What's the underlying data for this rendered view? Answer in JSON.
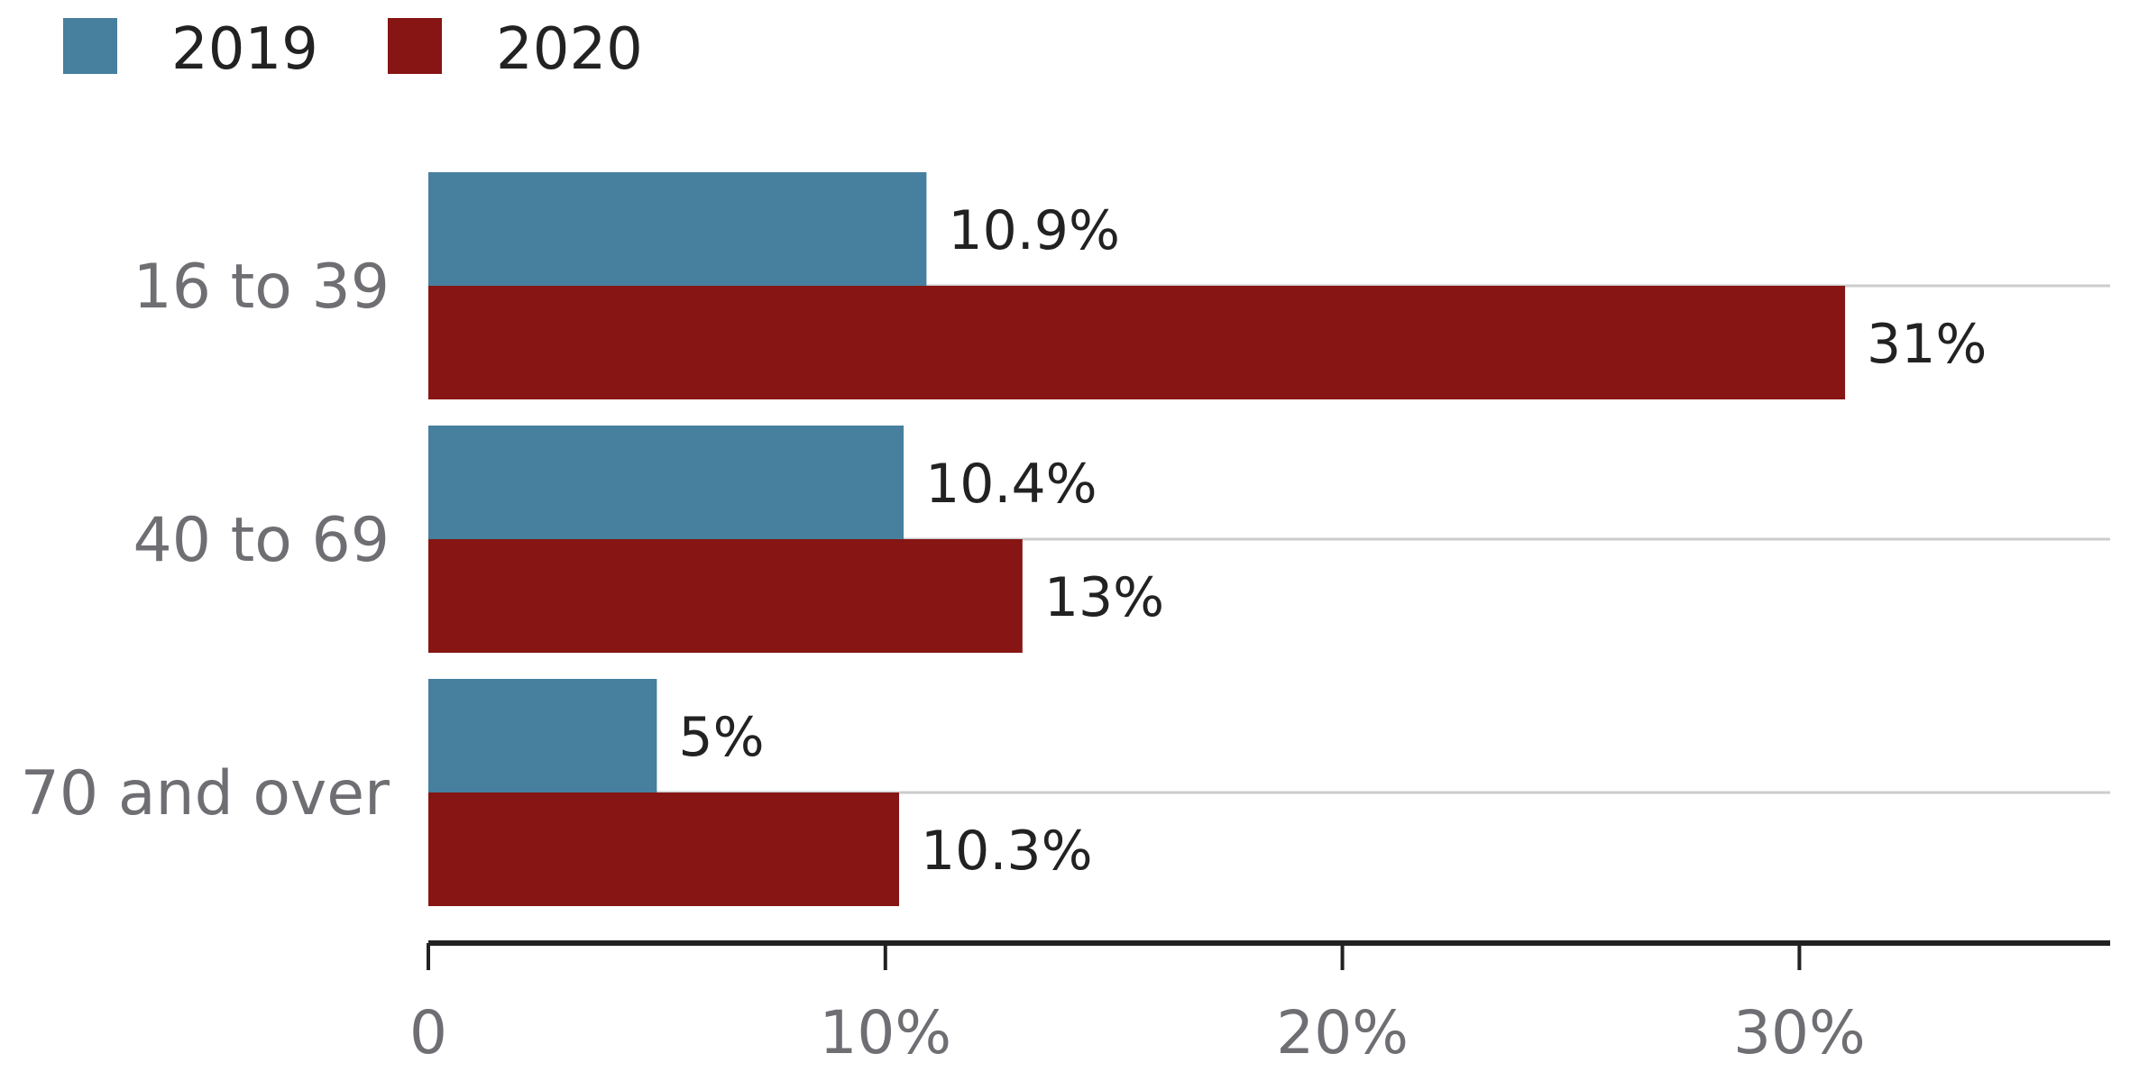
{
  "chart_data": {
    "type": "bar",
    "orientation": "horizontal",
    "categories": [
      "16 to 39",
      "40 to 69",
      "70 and over"
    ],
    "series": [
      {
        "name": "2019",
        "color": "#477f9e",
        "values": [
          10.9,
          10.4,
          5
        ],
        "labels": [
          "10.9%",
          "10.4%",
          "5%"
        ]
      },
      {
        "name": "2020",
        "color": "#861513",
        "values": [
          31,
          13,
          10.3
        ],
        "labels": [
          "31%",
          "13%",
          "10.3%"
        ]
      }
    ],
    "xlim": [
      0,
      36.8
    ],
    "x_ticks": [
      0,
      10,
      20,
      30
    ],
    "x_tick_labels": [
      "0",
      "10%",
      "20%",
      "30%"
    ],
    "legend_position": "top-left",
    "grid": true
  }
}
